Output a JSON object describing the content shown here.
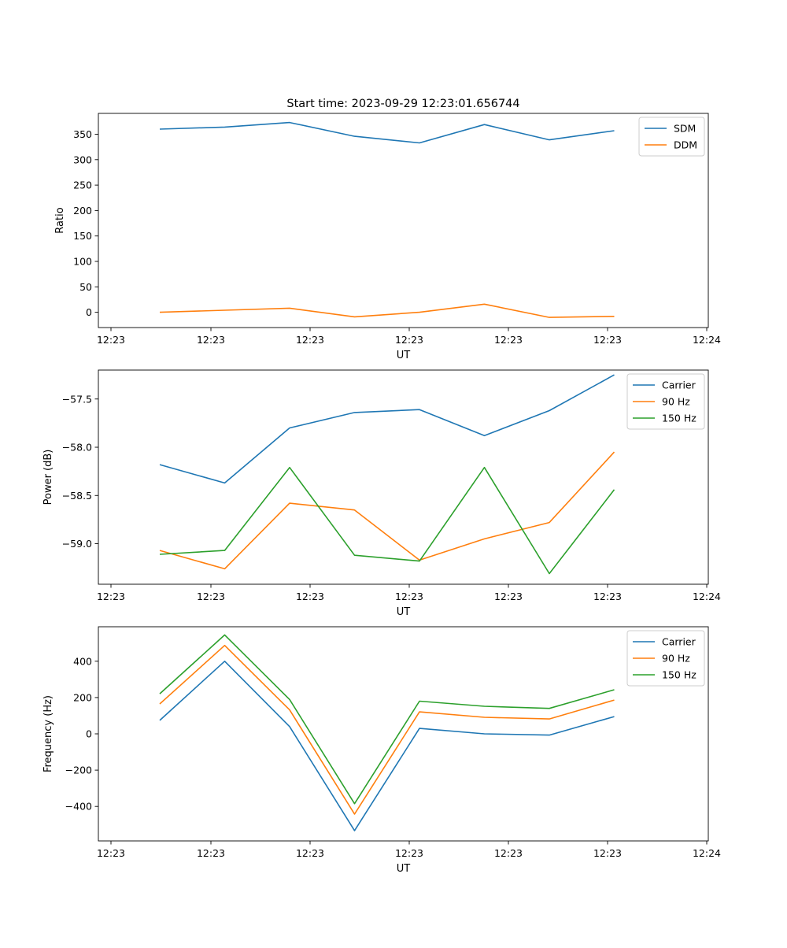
{
  "figure_title": "Start time: 2023-09-29 12:23:01.656744",
  "colors": {
    "blue": "#1f77b4",
    "orange": "#ff7f0e",
    "green": "#2ca02c"
  },
  "chart_data": [
    {
      "type": "line",
      "ylabel": "Ratio",
      "xlabel": "UT",
      "x_tick_labels": [
        "12:23",
        "12:23",
        "12:23",
        "12:23",
        "12:23",
        "12:23",
        "12:24"
      ],
      "y_ticks": [
        0,
        50,
        100,
        150,
        200,
        250,
        300,
        350
      ],
      "ylim": [
        -30,
        391
      ],
      "legend_position": "upper right",
      "series": [
        {
          "name": "SDM",
          "color": "#1f77b4",
          "values": [
            360,
            364,
            373,
            346,
            333,
            369,
            339,
            357
          ]
        },
        {
          "name": "DDM",
          "color": "#ff7f0e",
          "values": [
            0,
            4,
            8,
            -9,
            0,
            16,
            -10,
            -8
          ]
        }
      ]
    },
    {
      "type": "line",
      "ylabel": "Power (dB)",
      "xlabel": "UT",
      "x_tick_labels": [
        "12:23",
        "12:23",
        "12:23",
        "12:23",
        "12:23",
        "12:23",
        "12:24"
      ],
      "y_ticks": [
        -59.0,
        -58.5,
        -58.0,
        -57.5
      ],
      "y_tick_labels": [
        "−59.0",
        "−58.5",
        "−58.0",
        "−57.5"
      ],
      "ylim": [
        -59.42,
        -57.2
      ],
      "legend_position": "upper right",
      "series": [
        {
          "name": "Carrier",
          "color": "#1f77b4",
          "values": [
            -58.18,
            -58.37,
            -57.8,
            -57.64,
            -57.61,
            -57.88,
            -57.62,
            -57.25
          ]
        },
        {
          "name": "90 Hz",
          "color": "#ff7f0e",
          "values": [
            -59.07,
            -59.26,
            -58.58,
            -58.65,
            -59.17,
            -58.95,
            -58.78,
            -58.05
          ]
        },
        {
          "name": "150 Hz",
          "color": "#2ca02c",
          "values": [
            -59.11,
            -59.07,
            -58.21,
            -59.12,
            -59.18,
            -58.21,
            -59.31,
            -58.44
          ]
        }
      ]
    },
    {
      "type": "line",
      "ylabel": "Frequency (Hz)",
      "xlabel": "UT",
      "x_tick_labels": [
        "12:23",
        "12:23",
        "12:23",
        "12:23",
        "12:23",
        "12:23",
        "12:24"
      ],
      "y_ticks": [
        -400,
        -200,
        0,
        200,
        400
      ],
      "y_tick_labels": [
        "−400",
        "−200",
        "0",
        "200",
        "400"
      ],
      "ylim": [
        -590,
        590
      ],
      "legend_position": "upper right",
      "series": [
        {
          "name": "Carrier",
          "color": "#1f77b4",
          "values": [
            74,
            400,
            40,
            -533,
            30,
            0,
            -7,
            95
          ]
        },
        {
          "name": "90 Hz",
          "color": "#ff7f0e",
          "values": [
            165,
            487,
            132,
            -442,
            121,
            91,
            82,
            186
          ]
        },
        {
          "name": "150 Hz",
          "color": "#2ca02c",
          "values": [
            221,
            545,
            189,
            -385,
            180,
            152,
            140,
            243
          ]
        }
      ]
    }
  ]
}
